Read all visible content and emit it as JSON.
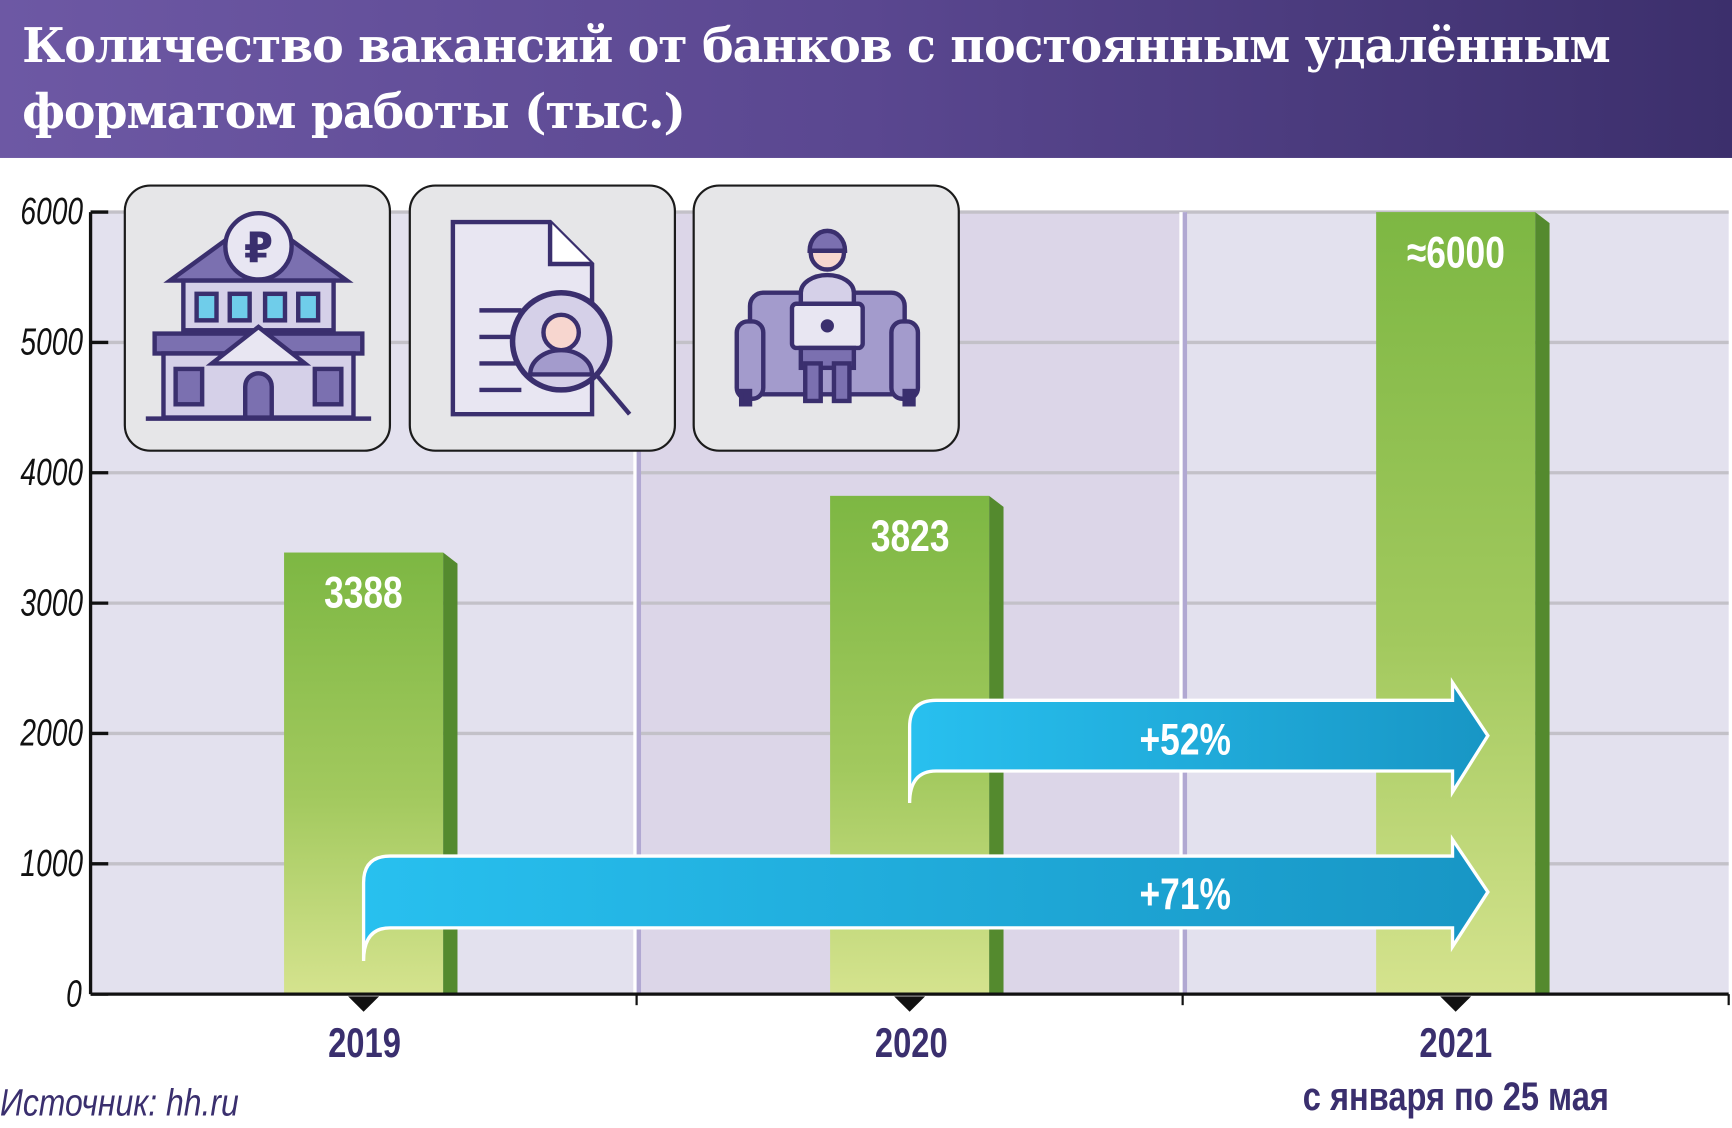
{
  "header": {
    "title": "Количество вакансий от банков с постоянным удалённым форматом работы (тыс.)"
  },
  "icons": [
    "bank-ruble-icon",
    "resume-search-icon",
    "remote-worker-icon"
  ],
  "colors": {
    "header": "#5a4790",
    "bar": "#86bb47",
    "bar_side": "#548a2e",
    "arrow": "#1fa8dc",
    "text": "#3a2f6e"
  },
  "chart_data": {
    "type": "bar",
    "title": "Количество вакансий от банков с постоянным удалённым форматом работы (тыс.)",
    "categories": [
      "2019",
      "2020",
      "2021"
    ],
    "category_notes": [
      "",
      "",
      "с января по 25 мая"
    ],
    "values": [
      3388,
      3823,
      6000
    ],
    "value_labels": [
      "3388",
      "3823",
      "≈6000"
    ],
    "ylim": [
      0,
      6000
    ],
    "yticks": [
      "0",
      "1000",
      "2000",
      "3000",
      "4000",
      "5000",
      "6000"
    ],
    "grid": true,
    "annotations": [
      {
        "from": "2020",
        "to": "2021",
        "label": "+52%"
      },
      {
        "from": "2019",
        "to": "2021",
        "label": "+71%"
      }
    ]
  },
  "footer": {
    "source": "Источник: hh.ru"
  }
}
